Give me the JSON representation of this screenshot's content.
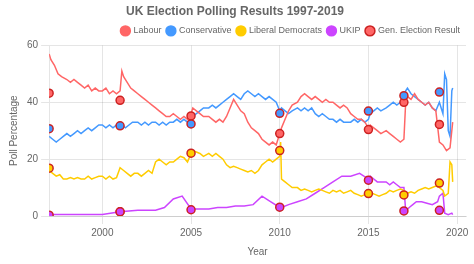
{
  "chart_data": {
    "type": "line",
    "title": "UK Election Polling Results 1997-2019",
    "x_label": "Year",
    "y_label": "Poll Percentage",
    "xlim": [
      1997,
      2020.5
    ],
    "ylim": [
      0,
      60
    ],
    "xticks": [
      2000,
      2005,
      2010,
      2015,
      2020
    ],
    "yticks": [
      0,
      20,
      40,
      60
    ],
    "grid": true,
    "legend": "upper right",
    "series": [
      {
        "name": "Labour",
        "type": "line",
        "color": "#ff6666",
        "x": [
          1997.0,
          1997.1,
          1997.3,
          1997.5,
          1997.7,
          1998.0,
          1998.2,
          1998.4,
          1998.6,
          1998.8,
          1999.0,
          1999.2,
          1999.4,
          1999.6,
          1999.8,
          2000.0,
          2000.2,
          2000.4,
          2000.6,
          2000.8,
          2001.0,
          2001.1,
          2001.2,
          2001.4,
          2001.6,
          2001.8,
          2002.0,
          2002.2,
          2002.4,
          2002.6,
          2002.8,
          2003.0,
          2003.2,
          2003.4,
          2003.6,
          2003.8,
          2004.0,
          2004.2,
          2004.4,
          2004.6,
          2004.8,
          2005.0,
          2005.1,
          2005.3,
          2005.5,
          2005.7,
          2006.0,
          2006.2,
          2006.4,
          2006.6,
          2006.8,
          2007.0,
          2007.2,
          2007.4,
          2007.6,
          2007.8,
          2008.0,
          2008.2,
          2008.4,
          2008.6,
          2008.8,
          2009.0,
          2009.2,
          2009.4,
          2009.6,
          2009.8,
          2010.0,
          2010.1,
          2010.3,
          2010.5,
          2010.7,
          2011.0,
          2011.2,
          2011.4,
          2011.6,
          2011.8,
          2012.0,
          2012.2,
          2012.4,
          2012.6,
          2012.8,
          2013.0,
          2013.2,
          2013.4,
          2013.6,
          2013.8,
          2014.0,
          2014.2,
          2014.4,
          2014.6,
          2014.8,
          2015.0,
          2015.1,
          2015.3,
          2015.5,
          2015.7,
          2016.0,
          2016.2,
          2016.4,
          2016.6,
          2016.8,
          2017.0,
          2017.1,
          2017.2,
          2017.4,
          2017.6,
          2017.8,
          2018.0,
          2018.2,
          2018.4,
          2018.6,
          2018.8,
          2019.0,
          2019.2,
          2019.4,
          2019.6,
          2019.75
        ],
        "values": [
          57.0,
          55.0,
          53.0,
          50.0,
          49.0,
          48.0,
          47.0,
          48.0,
          47.0,
          46.0,
          45.0,
          46.0,
          44.0,
          45.0,
          44.0,
          44.0,
          45.0,
          43.0,
          44.0,
          43.0,
          44.0,
          51.0,
          49.0,
          47.0,
          45.0,
          44.0,
          43.0,
          42.0,
          41.0,
          40.0,
          39.0,
          38.0,
          37.0,
          36.0,
          35.0,
          35.0,
          36.0,
          35.0,
          34.0,
          35.0,
          34.0,
          36.0,
          38.0,
          37.0,
          36.0,
          35.0,
          35.0,
          34.0,
          33.0,
          34.0,
          33.0,
          35.0,
          38.0,
          41.0,
          39.0,
          37.0,
          36.0,
          33.0,
          31.0,
          30.0,
          29.0,
          27.0,
          26.0,
          25.0,
          26.0,
          25.0,
          29.0,
          31.0,
          34.0,
          37.0,
          39.0,
          40.0,
          42.0,
          43.0,
          42.0,
          41.0,
          42.0,
          41.0,
          40.0,
          41.0,
          40.0,
          40.0,
          39.0,
          38.0,
          39.0,
          38.0,
          36.0,
          35.0,
          34.0,
          34.0,
          33.0,
          31.0,
          32.0,
          31.0,
          30.0,
          29.0,
          30.0,
          29.0,
          28.0,
          27.0,
          26.0,
          27.0,
          40.0,
          42.0,
          41.0,
          43.0,
          41.0,
          40.0,
          39.0,
          40.0,
          38.0,
          37.0,
          26.0,
          25.0,
          23.0,
          24.0,
          33.0
        ]
      },
      {
        "name": "Conservative",
        "type": "line",
        "color": "#4499ff",
        "x": [
          1997.0,
          1997.2,
          1997.4,
          1997.6,
          1997.8,
          1998.0,
          1998.2,
          1998.4,
          1998.6,
          1998.8,
          1999.0,
          1999.2,
          1999.4,
          1999.6,
          1999.8,
          2000.0,
          2000.2,
          2000.4,
          2000.6,
          2000.8,
          2001.0,
          2001.1,
          2001.3,
          2001.5,
          2001.7,
          2002.0,
          2002.2,
          2002.4,
          2002.6,
          2002.8,
          2003.0,
          2003.2,
          2003.4,
          2003.6,
          2003.8,
          2004.0,
          2004.2,
          2004.4,
          2004.6,
          2004.8,
          2005.0,
          2005.1,
          2005.3,
          2005.5,
          2005.7,
          2006.0,
          2006.2,
          2006.4,
          2006.6,
          2006.8,
          2007.0,
          2007.2,
          2007.4,
          2007.6,
          2007.8,
          2008.0,
          2008.2,
          2008.4,
          2008.6,
          2008.8,
          2009.0,
          2009.2,
          2009.4,
          2009.6,
          2009.8,
          2010.0,
          2010.1,
          2010.3,
          2010.5,
          2010.7,
          2011.0,
          2011.2,
          2011.4,
          2011.6,
          2011.8,
          2012.0,
          2012.2,
          2012.4,
          2012.6,
          2012.8,
          2013.0,
          2013.2,
          2013.4,
          2013.6,
          2013.8,
          2014.0,
          2014.2,
          2014.4,
          2014.6,
          2014.8,
          2015.0,
          2015.1,
          2015.3,
          2015.5,
          2015.7,
          2016.0,
          2016.2,
          2016.4,
          2016.6,
          2016.8,
          2017.0,
          2017.1,
          2017.2,
          2017.4,
          2017.6,
          2017.8,
          2018.0,
          2018.2,
          2018.4,
          2018.6,
          2018.8,
          2019.0,
          2019.1,
          2019.2,
          2019.3,
          2019.4,
          2019.5,
          2019.6,
          2019.7,
          2019.75
        ],
        "values": [
          28.0,
          27.0,
          26.0,
          27.0,
          28.0,
          29.0,
          28.0,
          29.0,
          30.0,
          29.0,
          30.0,
          31.0,
          30.0,
          31.0,
          32.0,
          32.0,
          31.0,
          32.0,
          31.0,
          32.0,
          31.0,
          32.0,
          31.0,
          32.0,
          33.0,
          33.0,
          32.0,
          33.0,
          32.0,
          33.0,
          33.0,
          32.0,
          33.0,
          32.0,
          33.0,
          33.0,
          34.0,
          33.0,
          34.0,
          33.0,
          33.0,
          35.0,
          36.0,
          37.0,
          38.0,
          38.0,
          39.0,
          38.0,
          39.0,
          40.0,
          41.0,
          42.0,
          43.0,
          42.0,
          41.0,
          43.0,
          44.0,
          43.0,
          42.0,
          43.0,
          42.0,
          41.0,
          42.0,
          41.0,
          40.0,
          37.0,
          38.0,
          37.0,
          36.0,
          37.0,
          38.0,
          37.0,
          38.0,
          37.0,
          38.0,
          36.0,
          35.0,
          36.0,
          35.0,
          34.0,
          34.0,
          33.0,
          34.0,
          33.0,
          33.0,
          33.0,
          34.0,
          33.0,
          34.0,
          33.0,
          34.0,
          36.0,
          37.0,
          38.0,
          37.0,
          38.0,
          39.0,
          40.0,
          39.0,
          40.0,
          41.0,
          44.0,
          45.0,
          43.0,
          42.0,
          41.0,
          40.0,
          39.0,
          40.0,
          38.0,
          37.0,
          40.0,
          38.0,
          36.0,
          50.0,
          48.0,
          30.0,
          28.0,
          44.0,
          45.0
        ]
      },
      {
        "name": "Liberal Democrats",
        "type": "line",
        "color": "#ffcc00",
        "x": [
          1997.0,
          1997.2,
          1997.4,
          1997.6,
          1997.8,
          1998.0,
          1998.2,
          1998.4,
          1998.6,
          1998.8,
          1999.0,
          1999.2,
          1999.4,
          1999.6,
          1999.8,
          2000.0,
          2000.2,
          2000.4,
          2000.6,
          2000.8,
          2001.0,
          2001.2,
          2001.4,
          2001.6,
          2001.8,
          2002.0,
          2002.2,
          2002.4,
          2002.6,
          2002.8,
          2003.0,
          2003.2,
          2003.4,
          2003.6,
          2003.8,
          2004.0,
          2004.2,
          2004.4,
          2004.6,
          2004.8,
          2005.0,
          2005.1,
          2005.3,
          2005.5,
          2005.7,
          2006.0,
          2006.2,
          2006.4,
          2006.6,
          2006.8,
          2007.0,
          2007.2,
          2007.4,
          2007.6,
          2007.8,
          2008.0,
          2008.2,
          2008.4,
          2008.6,
          2008.8,
          2009.0,
          2009.2,
          2009.4,
          2009.6,
          2009.8,
          2010.0,
          2010.05,
          2010.1,
          2010.3,
          2010.5,
          2010.7,
          2011.0,
          2011.2,
          2011.4,
          2011.6,
          2011.8,
          2012.0,
          2012.2,
          2012.4,
          2012.6,
          2012.8,
          2013.0,
          2013.2,
          2013.4,
          2013.6,
          2013.8,
          2014.0,
          2014.2,
          2014.4,
          2014.6,
          2014.8,
          2015.0,
          2015.2,
          2015.4,
          2015.6,
          2015.8,
          2016.0,
          2016.2,
          2016.4,
          2016.6,
          2016.8,
          2017.0,
          2017.1,
          2017.2,
          2017.4,
          2017.6,
          2017.8,
          2018.0,
          2018.2,
          2018.4,
          2018.6,
          2018.8,
          2019.0,
          2019.2,
          2019.3,
          2019.5,
          2019.6,
          2019.7,
          2019.75
        ],
        "values": [
          16.0,
          15.0,
          14.0,
          14.5,
          13.0,
          13.0,
          13.5,
          13.0,
          13.5,
          13.0,
          13.0,
          14.0,
          13.0,
          13.5,
          14.0,
          14.0,
          13.0,
          14.0,
          13.0,
          13.5,
          17.0,
          16.0,
          15.0,
          14.0,
          15.0,
          15.0,
          14.0,
          15.0,
          16.0,
          15.0,
          19.0,
          20.0,
          19.0,
          18.0,
          19.0,
          19.0,
          20.0,
          21.0,
          20.5,
          19.0,
          22.0,
          23.0,
          22.5,
          22.0,
          21.0,
          22.0,
          21.0,
          22.0,
          21.0,
          20.0,
          18.0,
          17.0,
          17.5,
          17.0,
          16.5,
          16.0,
          15.5,
          16.0,
          15.0,
          16.0,
          18.0,
          19.0,
          20.0,
          19.0,
          20.0,
          21.0,
          26.0,
          13.0,
          12.0,
          11.0,
          10.0,
          10.0,
          9.0,
          9.5,
          9.0,
          8.5,
          9.0,
          9.5,
          9.0,
          8.5,
          8.0,
          9.0,
          8.5,
          9.0,
          8.0,
          8.5,
          9.0,
          8.0,
          7.5,
          7.0,
          7.5,
          8.0,
          8.0,
          7.5,
          7.0,
          7.5,
          8.0,
          9.0,
          8.5,
          9.0,
          9.5,
          9.0,
          7.5,
          8.0,
          8.5,
          8.0,
          9.0,
          9.5,
          10.0,
          9.5,
          10.0,
          10.5,
          10.0,
          9.0,
          7.0,
          8.0,
          19.0,
          18.0,
          12.0
        ]
      },
      {
        "name": "UKIP",
        "type": "line",
        "color": "#cc44ff",
        "x": [
          1997.0,
          1998.0,
          1999.0,
          2000.0,
          2001.0,
          2002.0,
          2003.0,
          2003.5,
          2004.0,
          2004.5,
          2005.0,
          2005.5,
          2006.0,
          2006.5,
          2007.0,
          2007.5,
          2008.0,
          2008.5,
          2009.0,
          2009.5,
          2010.0,
          2010.1,
          2010.5,
          2011.0,
          2011.5,
          2012.0,
          2012.5,
          2013.0,
          2013.5,
          2014.0,
          2014.5,
          2015.0,
          2015.1,
          2015.3,
          2015.5,
          2015.7,
          2016.0,
          2016.2,
          2016.4,
          2016.6,
          2016.8,
          2017.0,
          2017.1,
          2017.3,
          2017.5,
          2017.7,
          2018.0,
          2018.3,
          2018.6,
          2018.9,
          2019.0,
          2019.2,
          2019.3,
          2019.5,
          2019.7,
          2019.75
        ],
        "values": [
          0.5,
          0.5,
          0.5,
          0.5,
          1.5,
          2.0,
          2.0,
          3.0,
          6.0,
          7.0,
          2.5,
          2.5,
          2.5,
          3.0,
          3.0,
          3.5,
          3.5,
          4.0,
          7.0,
          5.0,
          3.0,
          3.0,
          4.0,
          5.0,
          6.0,
          8.0,
          10.0,
          12.0,
          14.0,
          14.0,
          15.0,
          13.0,
          14.0,
          13.0,
          12.0,
          12.0,
          12.0,
          11.0,
          12.0,
          11.0,
          10.0,
          10.0,
          1.8,
          3.0,
          4.0,
          5.0,
          5.0,
          4.5,
          4.0,
          5.0,
          7.0,
          8.0,
          1.0,
          0.5,
          1.0,
          0.5
        ]
      },
      {
        "name": "Gen. Election Result",
        "type": "scatter",
        "color": "#cc2222",
        "x": [
          1997,
          1997,
          1997,
          1997,
          2001,
          2001,
          2001,
          2001,
          2005,
          2005,
          2005,
          2005,
          2010,
          2010,
          2010,
          2010,
          2015,
          2015,
          2015,
          2015,
          2017,
          2017,
          2017,
          2017,
          2019,
          2019,
          2019,
          2019
        ],
        "values": [
          43.2,
          30.7,
          16.8,
          0.3,
          40.7,
          31.7,
          1.5,
          1.5,
          35.2,
          32.4,
          22.1,
          2.2,
          29.0,
          36.1,
          23.0,
          3.1,
          30.4,
          36.9,
          7.9,
          12.6,
          40.0,
          42.3,
          7.4,
          1.8,
          32.2,
          43.6,
          11.6,
          2.0
        ],
        "colors": [
          "#ff6666",
          "#4499ff",
          "#ffcc00",
          "#cc44ff",
          "#ff6666",
          "#4499ff",
          "#ffcc00",
          "#cc44ff",
          "#ff6666",
          "#4499ff",
          "#ffcc00",
          "#cc44ff",
          "#ff6666",
          "#4499ff",
          "#ffcc00",
          "#cc44ff",
          "#ff6666",
          "#4499ff",
          "#ffcc00",
          "#cc44ff",
          "#ff6666",
          "#4499ff",
          "#ffcc00",
          "#cc44ff",
          "#ff6666",
          "#4499ff",
          "#ffcc00",
          "#cc44ff"
        ]
      }
    ]
  }
}
